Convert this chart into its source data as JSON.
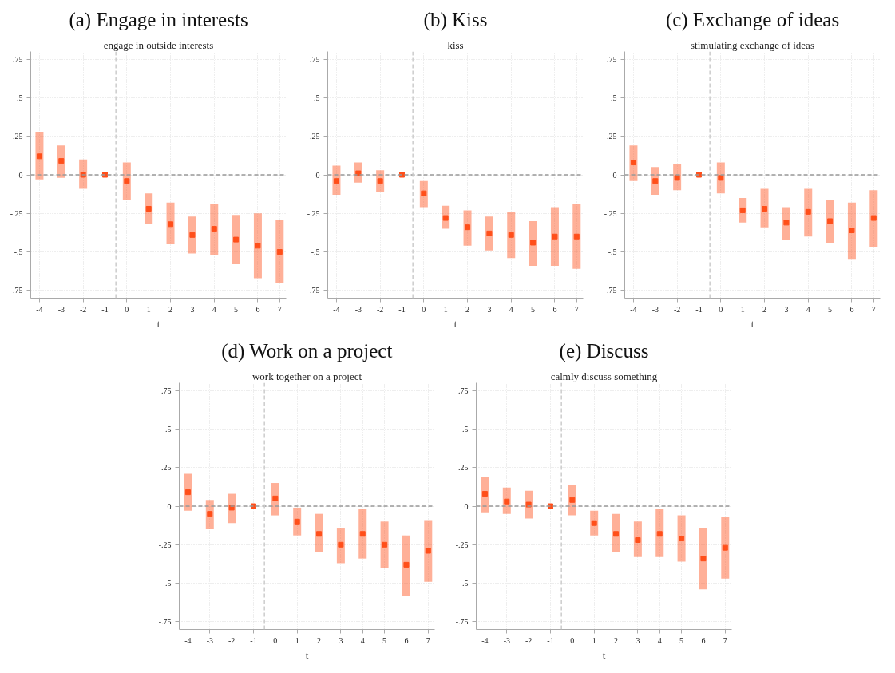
{
  "chart_data": [
    {
      "type": "scatter",
      "title": "(a) Engage in interests",
      "subtitle": "engage in outside interests",
      "xlabel": "t",
      "x": [
        -4,
        -3,
        -2,
        -1,
        0,
        1,
        2,
        3,
        4,
        5,
        6,
        7
      ],
      "color": "#ff4f1a",
      "marker": "square",
      "values": [
        0.12,
        0.09,
        0.0,
        0,
        -0.04,
        -0.22,
        -0.32,
        -0.39,
        -0.35,
        -0.42,
        -0.46,
        -0.5
      ],
      "errors": [
        [
          -0.03,
          0.28
        ],
        [
          -0.02,
          0.19
        ],
        [
          -0.09,
          0.1
        ],
        null,
        [
          -0.16,
          0.08
        ],
        [
          -0.32,
          -0.12
        ],
        [
          -0.45,
          -0.18
        ],
        [
          -0.51,
          -0.27
        ],
        [
          -0.52,
          -0.19
        ],
        [
          -0.58,
          -0.26
        ],
        [
          -0.67,
          -0.25
        ],
        [
          -0.7,
          -0.29
        ]
      ],
      "xlim": [
        -4.4,
        7.3
      ],
      "ylim": [
        -0.8,
        0.8
      ],
      "xticks": [
        -4,
        -3,
        -2,
        -1,
        0,
        1,
        2,
        3,
        4,
        5,
        6,
        7
      ],
      "yticks": [
        {
          "value": 0.75,
          "label": ".75"
        },
        {
          "value": 0.5,
          "label": ".5"
        },
        {
          "value": 0.25,
          "label": ".25"
        },
        0,
        {
          "value": -0.25,
          "label": "-.25"
        },
        {
          "value": -0.5,
          "label": "-.5"
        },
        {
          "value": -0.75,
          "label": "-.75"
        }
      ],
      "grid": true,
      "ref_lines": [
        {
          "axis": "y",
          "value": 0,
          "color": "#999999",
          "line_style": "dashed"
        },
        {
          "axis": "x",
          "value": -0.5,
          "color": "#cccccc",
          "line_style": "dashed"
        }
      ]
    },
    {
      "type": "scatter",
      "title": "(b) Kiss",
      "subtitle": "kiss",
      "xlabel": "t",
      "x": [
        -4,
        -3,
        -2,
        -1,
        0,
        1,
        2,
        3,
        4,
        5,
        6,
        7
      ],
      "color": "#ff4f1a",
      "marker": "square",
      "values": [
        -0.04,
        0.01,
        -0.04,
        0,
        -0.12,
        -0.28,
        -0.34,
        -0.38,
        -0.39,
        -0.44,
        -0.4,
        -0.4
      ],
      "errors": [
        [
          -0.13,
          0.06
        ],
        [
          -0.05,
          0.08
        ],
        [
          -0.11,
          0.03
        ],
        null,
        [
          -0.21,
          -0.04
        ],
        [
          -0.35,
          -0.2
        ],
        [
          -0.46,
          -0.23
        ],
        [
          -0.49,
          -0.27
        ],
        [
          -0.54,
          -0.24
        ],
        [
          -0.59,
          -0.3
        ],
        [
          -0.59,
          -0.21
        ],
        [
          -0.61,
          -0.19
        ]
      ],
      "xlim": [
        -4.4,
        7.3
      ],
      "ylim": [
        -0.8,
        0.8
      ],
      "xticks": [
        -4,
        -3,
        -2,
        -1,
        0,
        1,
        2,
        3,
        4,
        5,
        6,
        7
      ],
      "yticks": [
        {
          "value": 0.75,
          "label": ".75"
        },
        {
          "value": 0.5,
          "label": ".5"
        },
        {
          "value": 0.25,
          "label": ".25"
        },
        0,
        {
          "value": -0.25,
          "label": "-.25"
        },
        {
          "value": -0.5,
          "label": "-.5"
        },
        {
          "value": -0.75,
          "label": "-.75"
        }
      ],
      "grid": true,
      "ref_lines": [
        {
          "axis": "y",
          "value": 0,
          "color": "#999999",
          "line_style": "dashed"
        },
        {
          "axis": "x",
          "value": -0.5,
          "color": "#cccccc",
          "line_style": "dashed"
        }
      ]
    },
    {
      "type": "scatter",
      "title": "(c) Exchange of ideas",
      "subtitle": "stimulating exchange of ideas",
      "xlabel": "t",
      "x": [
        -4,
        -3,
        -2,
        -1,
        0,
        1,
        2,
        3,
        4,
        5,
        6,
        7
      ],
      "color": "#ff4f1a",
      "marker": "square",
      "values": [
        0.08,
        -0.04,
        -0.02,
        0,
        -0.02,
        -0.23,
        -0.22,
        -0.31,
        -0.24,
        -0.3,
        -0.36,
        -0.28
      ],
      "errors": [
        [
          -0.04,
          0.19
        ],
        [
          -0.13,
          0.05
        ],
        [
          -0.1,
          0.07
        ],
        null,
        [
          -0.12,
          0.08
        ],
        [
          -0.31,
          -0.15
        ],
        [
          -0.34,
          -0.09
        ],
        [
          -0.42,
          -0.21
        ],
        [
          -0.4,
          -0.09
        ],
        [
          -0.44,
          -0.16
        ],
        [
          -0.55,
          -0.18
        ],
        [
          -0.47,
          -0.1
        ]
      ],
      "xlim": [
        -4.4,
        7.3
      ],
      "ylim": [
        -0.8,
        0.8
      ],
      "xticks": [
        -4,
        -3,
        -2,
        -1,
        0,
        1,
        2,
        3,
        4,
        5,
        6,
        7
      ],
      "yticks": [
        {
          "value": 0.75,
          "label": ".75"
        },
        {
          "value": 0.5,
          "label": ".5"
        },
        {
          "value": 0.25,
          "label": ".25"
        },
        0,
        {
          "value": -0.25,
          "label": "-.25"
        },
        {
          "value": -0.5,
          "label": "-.5"
        },
        {
          "value": -0.75,
          "label": "-.75"
        }
      ],
      "grid": true,
      "ref_lines": [
        {
          "axis": "y",
          "value": 0,
          "color": "#999999",
          "line_style": "dashed"
        },
        {
          "axis": "x",
          "value": -0.5,
          "color": "#cccccc",
          "line_style": "dashed"
        }
      ]
    },
    {
      "type": "scatter",
      "title": "(d) Work on a project",
      "subtitle": "work together on a project",
      "xlabel": "t",
      "x": [
        -4,
        -3,
        -2,
        -1,
        0,
        1,
        2,
        3,
        4,
        5,
        6,
        7
      ],
      "color": "#ff4f1a",
      "marker": "square",
      "values": [
        0.09,
        -0.05,
        -0.01,
        0,
        0.05,
        -0.1,
        -0.18,
        -0.25,
        -0.18,
        -0.25,
        -0.38,
        -0.29
      ],
      "errors": [
        [
          -0.03,
          0.21
        ],
        [
          -0.15,
          0.04
        ],
        [
          -0.11,
          0.08
        ],
        null,
        [
          -0.06,
          0.15
        ],
        [
          -0.19,
          -0.01
        ],
        [
          -0.3,
          -0.05
        ],
        [
          -0.37,
          -0.14
        ],
        [
          -0.34,
          -0.02
        ],
        [
          -0.4,
          -0.1
        ],
        [
          -0.58,
          -0.19
        ],
        [
          -0.49,
          -0.09
        ]
      ],
      "xlim": [
        -4.4,
        7.3
      ],
      "ylim": [
        -0.8,
        0.8
      ],
      "xticks": [
        -4,
        -3,
        -2,
        -1,
        0,
        1,
        2,
        3,
        4,
        5,
        6,
        7
      ],
      "yticks": [
        {
          "value": 0.75,
          "label": ".75"
        },
        {
          "value": 0.5,
          "label": ".5"
        },
        {
          "value": 0.25,
          "label": ".25"
        },
        0,
        {
          "value": -0.25,
          "label": "-.25"
        },
        {
          "value": -0.5,
          "label": "-.5"
        },
        {
          "value": -0.75,
          "label": "-.75"
        }
      ],
      "grid": true,
      "ref_lines": [
        {
          "axis": "y",
          "value": 0,
          "color": "#999999",
          "line_style": "dashed"
        },
        {
          "axis": "x",
          "value": -0.5,
          "color": "#cccccc",
          "line_style": "dashed"
        }
      ]
    },
    {
      "type": "scatter",
      "title": "(e) Discuss",
      "subtitle": "calmly discuss something",
      "xlabel": "t",
      "x": [
        -4,
        -3,
        -2,
        -1,
        0,
        1,
        2,
        3,
        4,
        5,
        6,
        7
      ],
      "color": "#ff4f1a",
      "marker": "square",
      "values": [
        0.08,
        0.03,
        0.01,
        0,
        0.04,
        -0.11,
        -0.18,
        -0.22,
        -0.18,
        -0.21,
        -0.34,
        -0.27
      ],
      "errors": [
        [
          -0.04,
          0.19
        ],
        [
          -0.05,
          0.12
        ],
        [
          -0.08,
          0.1
        ],
        null,
        [
          -0.06,
          0.14
        ],
        [
          -0.19,
          -0.03
        ],
        [
          -0.3,
          -0.05
        ],
        [
          -0.33,
          -0.1
        ],
        [
          -0.33,
          -0.02
        ],
        [
          -0.36,
          -0.06
        ],
        [
          -0.54,
          -0.14
        ],
        [
          -0.47,
          -0.07
        ]
      ],
      "xlim": [
        -4.4,
        7.3
      ],
      "ylim": [
        -0.8,
        0.8
      ],
      "xticks": [
        -4,
        -3,
        -2,
        -1,
        0,
        1,
        2,
        3,
        4,
        5,
        6,
        7
      ],
      "yticks": [
        {
          "value": 0.75,
          "label": ".75"
        },
        {
          "value": 0.5,
          "label": ".5"
        },
        {
          "value": 0.25,
          "label": ".25"
        },
        0,
        {
          "value": -0.25,
          "label": "-.25"
        },
        {
          "value": -0.5,
          "label": "-.5"
        },
        {
          "value": -0.75,
          "label": "-.75"
        }
      ],
      "grid": true,
      "ref_lines": [
        {
          "axis": "y",
          "value": 0,
          "color": "#999999",
          "line_style": "dashed"
        },
        {
          "axis": "x",
          "value": -0.5,
          "color": "#cccccc",
          "line_style": "dashed"
        }
      ]
    }
  ]
}
